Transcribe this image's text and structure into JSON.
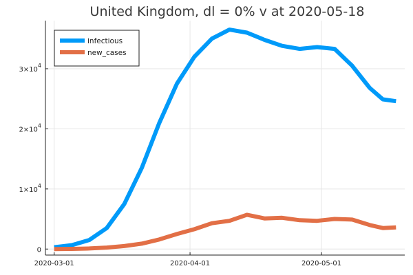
{
  "chart_data": {
    "type": "line",
    "title": "United Kingdom,  dl = 0% v at 2020-05-18",
    "xlabel": "",
    "ylabel": "",
    "x_start": "2020-03-01",
    "x_end": "2020-05-18",
    "xlim": [
      "2020-02-28",
      "2020-05-20"
    ],
    "ylim": [
      -1000,
      38000
    ],
    "x_ticks": [
      {
        "date": "2020-03-01",
        "label": "2020-03-01"
      },
      {
        "date": "2020-04-01",
        "label": "2020-04-01"
      },
      {
        "date": "2020-05-01",
        "label": "2020-05-01"
      }
    ],
    "y_ticks": [
      {
        "value": 0,
        "mantissa": "0",
        "exp": ""
      },
      {
        "value": 10000,
        "mantissa": "1×10",
        "exp": "4"
      },
      {
        "value": 20000,
        "mantissa": "2×10",
        "exp": "4"
      },
      {
        "value": 30000,
        "mantissa": "3×10",
        "exp": "4"
      }
    ],
    "grid": true,
    "legend_position": "top-left",
    "series": [
      {
        "name": "infectious",
        "color": "#009af9",
        "points": [
          [
            "2020-03-01",
            300
          ],
          [
            "2020-03-05",
            650
          ],
          [
            "2020-03-09",
            1500
          ],
          [
            "2020-03-13",
            3500
          ],
          [
            "2020-03-17",
            7500
          ],
          [
            "2020-03-21",
            13500
          ],
          [
            "2020-03-25",
            21000
          ],
          [
            "2020-03-29",
            27500
          ],
          [
            "2020-04-02",
            32000
          ],
          [
            "2020-04-06",
            35000
          ],
          [
            "2020-04-10",
            36500
          ],
          [
            "2020-04-14",
            36000
          ],
          [
            "2020-04-18",
            34800
          ],
          [
            "2020-04-22",
            33800
          ],
          [
            "2020-04-26",
            33300
          ],
          [
            "2020-04-30",
            33600
          ],
          [
            "2020-05-04",
            33300
          ],
          [
            "2020-05-08",
            30500
          ],
          [
            "2020-05-12",
            26800
          ],
          [
            "2020-05-15",
            24900
          ],
          [
            "2020-05-18",
            24600
          ]
        ]
      },
      {
        "name": "new_cases",
        "color": "#e26f46",
        "points": [
          [
            "2020-03-01",
            0
          ],
          [
            "2020-03-05",
            30
          ],
          [
            "2020-03-09",
            100
          ],
          [
            "2020-03-13",
            250
          ],
          [
            "2020-03-17",
            500
          ],
          [
            "2020-03-21",
            900
          ],
          [
            "2020-03-25",
            1600
          ],
          [
            "2020-03-29",
            2500
          ],
          [
            "2020-04-02",
            3300
          ],
          [
            "2020-04-06",
            4300
          ],
          [
            "2020-04-10",
            4700
          ],
          [
            "2020-04-14",
            5700
          ],
          [
            "2020-04-18",
            5100
          ],
          [
            "2020-04-22",
            5200
          ],
          [
            "2020-04-26",
            4800
          ],
          [
            "2020-04-30",
            4700
          ],
          [
            "2020-05-04",
            5000
          ],
          [
            "2020-05-08",
            4900
          ],
          [
            "2020-05-12",
            4000
          ],
          [
            "2020-05-15",
            3500
          ],
          [
            "2020-05-18",
            3600
          ]
        ]
      }
    ]
  }
}
